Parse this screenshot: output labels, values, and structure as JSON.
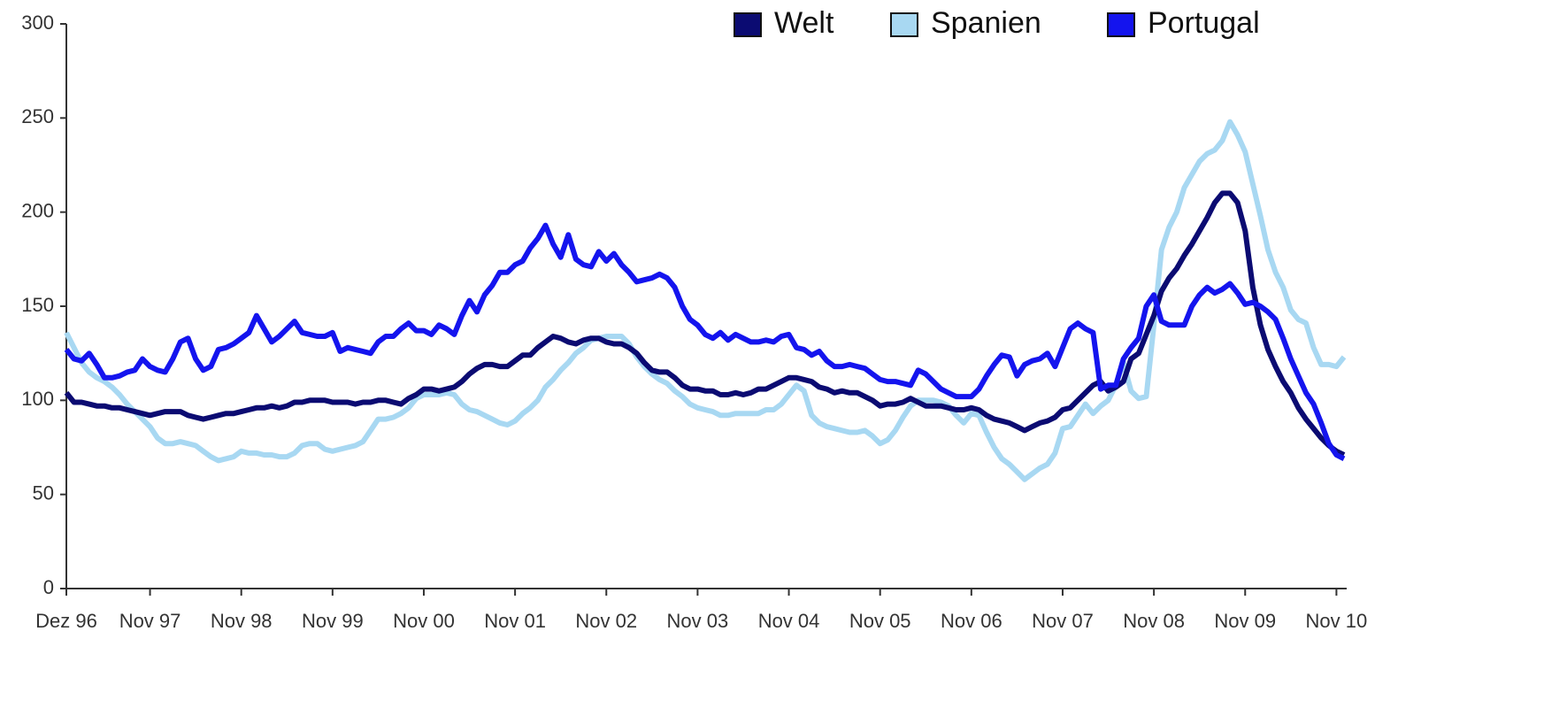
{
  "chart_data": {
    "type": "line",
    "categories": [
      "Dez 96",
      null,
      null,
      null,
      null,
      null,
      null,
      null,
      null,
      null,
      null,
      "Nov 97",
      null,
      null,
      null,
      null,
      null,
      null,
      null,
      null,
      null,
      null,
      null,
      "Nov 98",
      null,
      null,
      null,
      null,
      null,
      null,
      null,
      null,
      null,
      null,
      null,
      "Nov 99",
      null,
      null,
      null,
      null,
      null,
      null,
      null,
      null,
      null,
      null,
      null,
      "Nov 00",
      null,
      null,
      null,
      null,
      null,
      null,
      null,
      null,
      null,
      null,
      null,
      "Nov 01",
      null,
      null,
      null,
      null,
      null,
      null,
      null,
      null,
      null,
      null,
      null,
      "Nov 02",
      null,
      null,
      null,
      null,
      null,
      null,
      null,
      null,
      null,
      null,
      null,
      "Nov 03",
      null,
      null,
      null,
      null,
      null,
      null,
      null,
      null,
      null,
      null,
      null,
      "Nov 04",
      null,
      null,
      null,
      null,
      null,
      null,
      null,
      null,
      null,
      null,
      null,
      "Nov 05",
      null,
      null,
      null,
      null,
      null,
      null,
      null,
      null,
      null,
      null,
      null,
      "Nov 06",
      null,
      null,
      null,
      null,
      null,
      null,
      null,
      null,
      null,
      null,
      null,
      "Nov 07",
      null,
      null,
      null,
      null,
      null,
      null,
      null,
      null,
      null,
      null,
      null,
      "Nov 08",
      null,
      null,
      null,
      null,
      null,
      null,
      null,
      null,
      null,
      null,
      null,
      "Nov 09",
      null,
      null,
      null,
      null,
      null,
      null,
      null,
      null,
      null,
      null,
      null,
      "Nov 10",
      null
    ],
    "series": [
      {
        "name": "Welt",
        "color": "#0b0b72",
        "values": [
          104,
          99,
          99,
          98,
          97,
          97,
          96,
          96,
          95,
          94,
          93,
          92,
          93,
          94,
          94,
          94,
          92,
          91,
          90,
          91,
          92,
          93,
          93,
          94,
          95,
          96,
          96,
          97,
          96,
          97,
          99,
          99,
          100,
          100,
          100,
          99,
          99,
          99,
          98,
          99,
          99,
          100,
          100,
          99,
          98,
          101,
          103,
          106,
          106,
          105,
          106,
          107,
          110,
          114,
          117,
          119,
          119,
          118,
          118,
          121,
          124,
          124,
          128,
          131,
          134,
          133,
          131,
          130,
          132,
          133,
          133,
          131,
          130,
          130,
          128,
          125,
          120,
          116,
          115,
          115,
          112,
          108,
          106,
          106,
          105,
          105,
          103,
          103,
          104,
          103,
          104,
          106,
          106,
          108,
          110,
          112,
          112,
          111,
          110,
          107,
          106,
          104,
          105,
          104,
          104,
          102,
          100,
          97,
          98,
          98,
          99,
          101,
          99,
          97,
          97,
          97,
          96,
          95,
          95,
          96,
          95,
          92,
          90,
          89,
          88,
          86,
          84,
          86,
          88,
          89,
          91,
          95,
          96,
          100,
          104,
          108,
          110,
          105,
          107,
          110,
          122,
          125,
          135,
          145,
          158,
          165,
          170,
          177,
          183,
          190,
          197,
          205,
          210,
          210,
          205,
          190,
          160,
          140,
          127,
          118,
          110,
          104,
          96,
          90,
          85,
          80,
          76,
          73,
          71
        ]
      },
      {
        "name": "Spanien",
        "color": "#a8d8f2",
        "values": [
          136,
          128,
          120,
          115,
          112,
          110,
          107,
          103,
          98,
          94,
          90,
          86,
          80,
          77,
          77,
          78,
          77,
          76,
          73,
          70,
          68,
          69,
          70,
          73,
          72,
          72,
          71,
          71,
          70,
          70,
          72,
          76,
          77,
          77,
          74,
          73,
          74,
          75,
          76,
          78,
          84,
          90,
          90,
          91,
          93,
          96,
          101,
          103,
          103,
          103,
          104,
          103,
          98,
          95,
          94,
          92,
          90,
          88,
          87,
          89,
          93,
          96,
          100,
          107,
          111,
          116,
          120,
          125,
          128,
          132,
          133,
          134,
          134,
          134,
          130,
          123,
          118,
          114,
          111,
          109,
          105,
          102,
          98,
          96,
          95,
          94,
          92,
          92,
          93,
          93,
          93,
          93,
          95,
          95,
          98,
          103,
          108,
          105,
          92,
          88,
          86,
          85,
          84,
          83,
          83,
          84,
          81,
          77,
          79,
          84,
          91,
          97,
          100,
          100,
          100,
          99,
          97,
          92,
          88,
          93,
          92,
          83,
          75,
          69,
          66,
          62,
          58,
          61,
          64,
          66,
          72,
          85,
          86,
          92,
          98,
          93,
          97,
          100,
          108,
          120,
          105,
          101,
          102,
          140,
          180,
          192,
          200,
          213,
          220,
          227,
          231,
          233,
          238,
          248,
          241,
          232,
          215,
          198,
          180,
          168,
          160,
          148,
          143,
          141,
          128,
          119,
          119,
          118,
          123
        ]
      },
      {
        "name": "Portugal",
        "color": "#1414ee",
        "values": [
          127,
          122,
          121,
          125,
          119,
          112,
          112,
          113,
          115,
          116,
          122,
          118,
          116,
          115,
          122,
          131,
          133,
          122,
          116,
          118,
          127,
          128,
          130,
          133,
          136,
          145,
          138,
          131,
          134,
          138,
          142,
          136,
          135,
          134,
          134,
          136,
          126,
          128,
          127,
          126,
          125,
          131,
          134,
          134,
          138,
          141,
          137,
          137,
          135,
          140,
          138,
          135,
          145,
          153,
          147,
          156,
          161,
          168,
          168,
          172,
          174,
          181,
          186,
          193,
          183,
          176,
          188,
          175,
          172,
          171,
          179,
          174,
          178,
          172,
          168,
          163,
          164,
          165,
          167,
          165,
          160,
          150,
          143,
          140,
          135,
          133,
          136,
          132,
          135,
          133,
          131,
          131,
          132,
          131,
          134,
          135,
          128,
          127,
          124,
          126,
          121,
          118,
          118,
          119,
          118,
          117,
          114,
          111,
          110,
          110,
          109,
          108,
          116,
          114,
          110,
          106,
          104,
          102,
          102,
          102,
          106,
          113,
          119,
          124,
          123,
          113,
          119,
          121,
          122,
          125,
          118,
          128,
          138,
          141,
          138,
          136,
          106,
          108,
          108,
          122,
          128,
          133,
          150,
          156,
          142,
          140,
          140,
          140,
          150,
          156,
          160,
          157,
          159,
          162,
          157,
          151,
          152,
          150,
          147,
          143,
          133,
          122,
          113,
          104,
          98,
          88,
          77,
          71,
          69
        ]
      }
    ],
    "ylim": [
      0,
      300
    ],
    "yticks": [
      0,
      50,
      100,
      150,
      200,
      250,
      300
    ],
    "grid": false,
    "legend": "top"
  }
}
